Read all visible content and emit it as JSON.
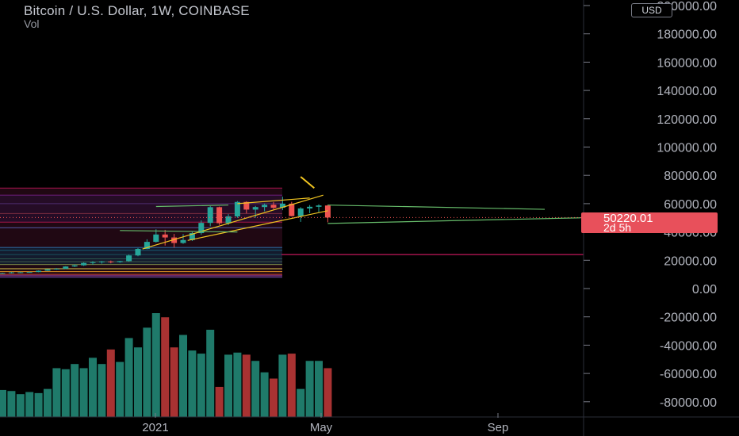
{
  "header": {
    "title": "Bitcoin / U.S. Dollar, 1W, COINBASE",
    "indicator": "Vol",
    "currency": "USD"
  },
  "price_tag": {
    "price": "50220.01",
    "countdown": "2d 5h"
  },
  "colors": {
    "background": "#000000",
    "up": "#26a69a",
    "down": "#ef5350",
    "vol_up": "#1f7a6a",
    "vol_down": "#a83232",
    "trendline_yellow": "#f0c420",
    "trendline_green": "#66bb6a",
    "level_magenta": "#c2185b",
    "price_tag": "#e8505b"
  },
  "chart_data": {
    "type": "candlestick",
    "symbol": "Bitcoin / U.S. Dollar",
    "interval": "1W",
    "exchange": "COINBASE",
    "y_axis": {
      "ticks": [
        "200000.00",
        "180000.00",
        "160000.00",
        "140000.00",
        "120000.00",
        "100000.00",
        "80000.00",
        "60000.00",
        "40000.00",
        "20000.00",
        "0.00",
        "-20000.00",
        "-40000.00",
        "-60000.00",
        "-80000.00"
      ],
      "range": [
        -92000,
        205000
      ]
    },
    "x_axis": {
      "ticks": [
        "2021",
        "May",
        "Sep"
      ]
    },
    "last_price": 50220.01,
    "candles": [
      {
        "o": 10600,
        "h": 11200,
        "l": 10400,
        "c": 10900
      },
      {
        "o": 10900,
        "h": 11800,
        "l": 10700,
        "c": 11400
      },
      {
        "o": 11400,
        "h": 11900,
        "l": 11100,
        "c": 11500
      },
      {
        "o": 11500,
        "h": 12000,
        "l": 11300,
        "c": 11700
      },
      {
        "o": 11700,
        "h": 12800,
        "l": 11500,
        "c": 12600
      },
      {
        "o": 12600,
        "h": 13800,
        "l": 12500,
        "c": 13600
      },
      {
        "o": 13600,
        "h": 14500,
        "l": 13300,
        "c": 14000
      },
      {
        "o": 14000,
        "h": 15800,
        "l": 13800,
        "c": 15600
      },
      {
        "o": 15600,
        "h": 17000,
        "l": 15200,
        "c": 16400
      },
      {
        "o": 16400,
        "h": 18500,
        "l": 16000,
        "c": 18100
      },
      {
        "o": 18100,
        "h": 19400,
        "l": 16800,
        "c": 18600
      },
      {
        "o": 18600,
        "h": 19500,
        "l": 17600,
        "c": 19100
      },
      {
        "o": 19100,
        "h": 19800,
        "l": 17800,
        "c": 18700
      },
      {
        "o": 18700,
        "h": 19600,
        "l": 18200,
        "c": 19400
      },
      {
        "o": 19400,
        "h": 24000,
        "l": 19000,
        "c": 23400
      },
      {
        "o": 23400,
        "h": 28600,
        "l": 22800,
        "c": 28000
      },
      {
        "o": 28000,
        "h": 34800,
        "l": 27800,
        "c": 33000
      },
      {
        "o": 33000,
        "h": 41900,
        "l": 32500,
        "c": 38200
      },
      {
        "o": 38200,
        "h": 41500,
        "l": 30400,
        "c": 36100
      },
      {
        "o": 36100,
        "h": 38600,
        "l": 28900,
        "c": 32200
      },
      {
        "o": 32200,
        "h": 38500,
        "l": 31600,
        "c": 34300
      },
      {
        "o": 34300,
        "h": 40000,
        "l": 33600,
        "c": 39200
      },
      {
        "o": 39200,
        "h": 48200,
        "l": 38000,
        "c": 46400
      },
      {
        "o": 46400,
        "h": 58300,
        "l": 44000,
        "c": 57500
      },
      {
        "o": 57500,
        "h": 57900,
        "l": 45000,
        "c": 46200
      },
      {
        "o": 46200,
        "h": 52600,
        "l": 44900,
        "c": 51000
      },
      {
        "o": 51000,
        "h": 61800,
        "l": 50000,
        "c": 61200
      },
      {
        "o": 61200,
        "h": 61700,
        "l": 53100,
        "c": 55800
      },
      {
        "o": 55800,
        "h": 58400,
        "l": 50000,
        "c": 57600
      },
      {
        "o": 57600,
        "h": 60100,
        "l": 54600,
        "c": 59200
      },
      {
        "o": 59200,
        "h": 61200,
        "l": 56000,
        "c": 57100
      },
      {
        "o": 57100,
        "h": 64900,
        "l": 55400,
        "c": 60000
      },
      {
        "o": 60000,
        "h": 61300,
        "l": 51000,
        "c": 51200
      },
      {
        "o": 51200,
        "h": 57500,
        "l": 47100,
        "c": 56600
      },
      {
        "o": 56600,
        "h": 59000,
        "l": 53300,
        "c": 57800
      },
      {
        "o": 57800,
        "h": 59500,
        "l": 54000,
        "c": 58700
      },
      {
        "o": 58700,
        "h": 59200,
        "l": 46800,
        "c": 50220
      }
    ],
    "volume": [
      0.26,
      0.25,
      0.22,
      0.24,
      0.23,
      0.27,
      0.47,
      0.46,
      0.51,
      0.47,
      0.57,
      0.51,
      0.65,
      0.53,
      0.76,
      0.67,
      0.86,
      1.0,
      0.96,
      0.67,
      0.79,
      0.64,
      0.61,
      0.84,
      0.29,
      0.6,
      0.62,
      0.6,
      0.54,
      0.43,
      0.37,
      0.6,
      0.61,
      0.27,
      0.54,
      0.54,
      0.47
    ],
    "fib_levels": [
      71000,
      66000,
      60000,
      53000,
      47000,
      43000,
      29000,
      27000,
      24000,
      21000,
      19000,
      17000,
      14000,
      12000,
      10000,
      9000,
      8000
    ],
    "annotations": [
      {
        "kind": "trendline",
        "color": "yellow",
        "from": [
          15.5,
          28000
        ],
        "to": [
          35.5,
          66000
        ]
      },
      {
        "kind": "trendline",
        "color": "yellow",
        "from": [
          20.5,
          34000
        ],
        "to": [
          36,
          55000
        ]
      },
      {
        "kind": "trendline",
        "color": "yellow",
        "from": [
          26,
          60000
        ],
        "to": [
          34,
          64000
        ]
      },
      {
        "kind": "arrow",
        "color": "yellow",
        "from": [
          33,
          79000
        ],
        "to": [
          34.5,
          71000
        ]
      },
      {
        "kind": "trendline",
        "color": "green",
        "from": [
          17,
          58000
        ],
        "to": [
          25,
          59000
        ]
      },
      {
        "kind": "trendline",
        "color": "green",
        "from": [
          13,
          41000
        ],
        "to": [
          26,
          40000
        ]
      },
      {
        "kind": "trendline",
        "color": "green",
        "from": [
          36,
          59000
        ],
        "to": [
          60,
          56000
        ]
      },
      {
        "kind": "trendline",
        "color": "green",
        "from": [
          36,
          46000
        ],
        "to": [
          64,
          50000
        ]
      },
      {
        "kind": "horizontal",
        "color": "magenta",
        "price": 24000
      }
    ]
  }
}
